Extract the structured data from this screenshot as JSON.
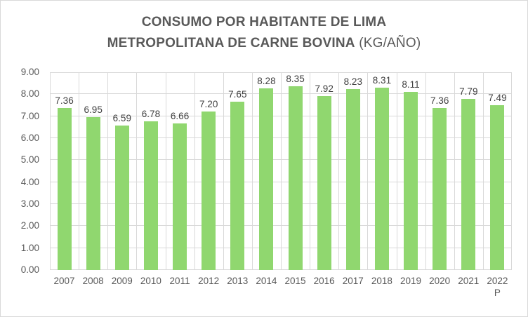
{
  "title": {
    "line1": "CONSUMO POR HABITANTE DE LIMA",
    "line2_main": "METROPOLITANA DE CARNE BOVINA",
    "line2_unit": "(KG/AÑO)"
  },
  "chart_data": {
    "type": "bar",
    "title": "CONSUMO POR HABITANTE DE LIMA METROPOLITANA DE CARNE BOVINA (KG/AÑO)",
    "categories": [
      "2007",
      "2008",
      "2009",
      "2010",
      "2011",
      "2012",
      "2013",
      "2014",
      "2015",
      "2016",
      "2017",
      "2018",
      "2019",
      "2020",
      "2021",
      "2022 P"
    ],
    "values": [
      7.36,
      6.95,
      6.59,
      6.78,
      6.66,
      7.2,
      7.65,
      8.28,
      8.35,
      7.92,
      8.23,
      8.31,
      8.11,
      7.36,
      7.79,
      7.49
    ],
    "data_labels": [
      "7.36",
      "6.95",
      "6.59",
      "6.78",
      "6.66",
      "7.20",
      "7.65",
      "8.28",
      "8.35",
      "7.92",
      "8.23",
      "8.31",
      "8.11",
      "7.36",
      "7.79",
      "7.49"
    ],
    "xlabel": "",
    "ylabel": "",
    "ylim": [
      0,
      9
    ],
    "ytick_step": 1,
    "ytick_labels": [
      "0.00",
      "1.00",
      "2.00",
      "3.00",
      "4.00",
      "5.00",
      "6.00",
      "7.00",
      "8.00",
      "9.00"
    ],
    "grid": "both",
    "legend": "none",
    "colors": {
      "bar": "#90d76f",
      "gridline": "#d9d9d9",
      "axis_text": "#595959",
      "data_label_text": "#404040",
      "title_text": "#595959",
      "chart_border": "#d9d9d9",
      "background": "#ffffff"
    }
  }
}
